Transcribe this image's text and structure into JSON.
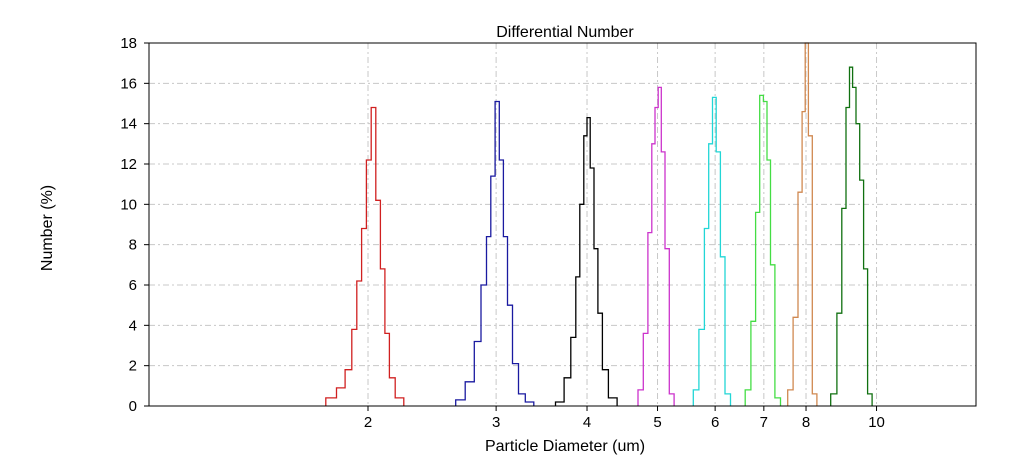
{
  "chart_data": {
    "type": "line",
    "title": "Differential Number",
    "xlabel": "Particle Diameter (um)",
    "ylabel": "Number (%)",
    "x_scale": "log",
    "xlim": [
      1.0,
      13.7
    ],
    "ylim": [
      0,
      18
    ],
    "x_ticks": [
      2,
      3,
      4,
      5,
      6,
      7,
      8,
      10
    ],
    "x_tick_labels": [
      "2",
      "3",
      "4",
      "5",
      "6",
      "7",
      "8",
      "10"
    ],
    "y_ticks": [
      0,
      2,
      4,
      6,
      8,
      10,
      12,
      14,
      16,
      18
    ],
    "y_tick_labels": [
      "0",
      "2",
      "4",
      "6",
      "8",
      "10",
      "12",
      "14",
      "16",
      "18"
    ],
    "grid": true,
    "series": [
      {
        "color": "#d02020",
        "step": "histogram",
        "bins": [
          [
            1.75,
            1.81,
            0.4
          ],
          [
            1.81,
            1.86,
            0.9
          ],
          [
            1.86,
            1.9,
            1.8
          ],
          [
            1.9,
            1.93,
            3.8
          ],
          [
            1.93,
            1.96,
            6.2
          ],
          [
            1.96,
            1.99,
            8.8
          ],
          [
            1.99,
            2.02,
            12.2
          ],
          [
            2.02,
            2.05,
            14.8
          ],
          [
            2.05,
            2.08,
            10.2
          ],
          [
            2.08,
            2.11,
            6.8
          ],
          [
            2.11,
            2.14,
            3.6
          ],
          [
            2.14,
            2.18,
            1.4
          ],
          [
            2.18,
            2.24,
            0.4
          ]
        ]
      },
      {
        "color": "#1a1aa0",
        "step": "histogram",
        "bins": [
          [
            2.64,
            2.72,
            0.3
          ],
          [
            2.72,
            2.8,
            1.2
          ],
          [
            2.8,
            2.86,
            3.2
          ],
          [
            2.86,
            2.91,
            6.0
          ],
          [
            2.91,
            2.95,
            8.4
          ],
          [
            2.95,
            2.99,
            11.4
          ],
          [
            2.99,
            3.03,
            15.1
          ],
          [
            3.03,
            3.07,
            12.2
          ],
          [
            3.07,
            3.11,
            8.4
          ],
          [
            3.11,
            3.16,
            5.0
          ],
          [
            3.16,
            3.22,
            2.1
          ],
          [
            3.22,
            3.29,
            0.6
          ],
          [
            3.29,
            3.38,
            0.2
          ]
        ]
      },
      {
        "color": "#000000",
        "step": "histogram",
        "bins": [
          [
            3.62,
            3.72,
            0.2
          ],
          [
            3.72,
            3.8,
            1.4
          ],
          [
            3.8,
            3.86,
            3.4
          ],
          [
            3.86,
            3.91,
            6.4
          ],
          [
            3.91,
            3.96,
            10.0
          ],
          [
            3.96,
            4.0,
            13.4
          ],
          [
            4.0,
            4.04,
            14.3
          ],
          [
            4.04,
            4.09,
            11.8
          ],
          [
            4.09,
            4.14,
            7.8
          ],
          [
            4.14,
            4.2,
            4.6
          ],
          [
            4.2,
            4.28,
            1.8
          ],
          [
            4.28,
            4.4,
            0.4
          ]
        ]
      },
      {
        "color": "#cc33cc",
        "step": "histogram",
        "bins": [
          [
            4.7,
            4.78,
            0.8
          ],
          [
            4.78,
            4.85,
            3.6
          ],
          [
            4.85,
            4.91,
            8.6
          ],
          [
            4.91,
            4.96,
            13.0
          ],
          [
            4.96,
            5.01,
            14.8
          ],
          [
            5.01,
            5.06,
            15.8
          ],
          [
            5.06,
            5.12,
            12.6
          ],
          [
            5.12,
            5.19,
            7.8
          ],
          [
            5.19,
            5.27,
            0.6
          ]
        ]
      },
      {
        "color": "#22d6d6",
        "step": "histogram",
        "bins": [
          [
            5.6,
            5.7,
            0.8
          ],
          [
            5.7,
            5.8,
            3.8
          ],
          [
            5.8,
            5.88,
            8.8
          ],
          [
            5.88,
            5.95,
            13.0
          ],
          [
            5.95,
            6.02,
            15.3
          ],
          [
            6.02,
            6.1,
            12.6
          ],
          [
            6.1,
            6.19,
            7.4
          ],
          [
            6.19,
            6.3,
            0.6
          ]
        ]
      },
      {
        "color": "#44dd44",
        "step": "histogram",
        "bins": [
          [
            6.6,
            6.72,
            0.8
          ],
          [
            6.72,
            6.82,
            4.2
          ],
          [
            6.82,
            6.91,
            9.6
          ],
          [
            6.91,
            6.99,
            15.4
          ],
          [
            6.99,
            7.07,
            15.1
          ],
          [
            7.07,
            7.15,
            12.2
          ],
          [
            7.15,
            7.25,
            7.0
          ],
          [
            7.25,
            7.38,
            0.4
          ]
        ]
      },
      {
        "color": "#d08850",
        "step": "histogram",
        "bins": [
          [
            7.55,
            7.68,
            0.8
          ],
          [
            7.68,
            7.8,
            4.4
          ],
          [
            7.8,
            7.9,
            10.6
          ],
          [
            7.9,
            7.98,
            14.6
          ],
          [
            7.98,
            8.06,
            18.0
          ],
          [
            8.06,
            8.16,
            13.4
          ],
          [
            8.16,
            8.28,
            0.6
          ]
        ]
      },
      {
        "color": "#107010",
        "step": "histogram",
        "bins": [
          [
            8.65,
            8.82,
            0.6
          ],
          [
            8.82,
            8.96,
            4.6
          ],
          [
            8.96,
            9.08,
            9.8
          ],
          [
            9.08,
            9.18,
            14.8
          ],
          [
            9.18,
            9.27,
            16.8
          ],
          [
            9.27,
            9.37,
            15.8
          ],
          [
            9.37,
            9.48,
            14.0
          ],
          [
            9.48,
            9.6,
            11.2
          ],
          [
            9.6,
            9.72,
            6.8
          ],
          [
            9.72,
            9.86,
            0.6
          ]
        ]
      }
    ]
  }
}
